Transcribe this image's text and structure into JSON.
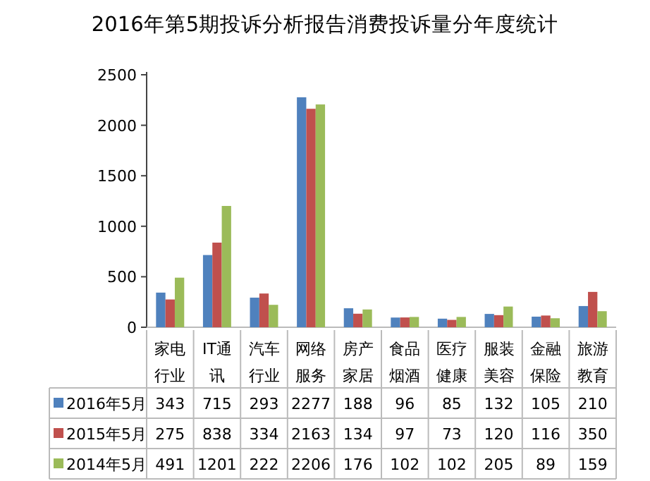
{
  "chart_data": {
    "type": "bar",
    "title": "2016年第5期投诉分析报告消费投诉量分年度统计",
    "categories": [
      "家电行业",
      "IT通讯",
      "汽车行业",
      "网络服务",
      "房产家居",
      "食品烟酒",
      "医疗健康",
      "服装美容",
      "金融保险",
      "旅游教育"
    ],
    "series": [
      {
        "name": "2016年5月",
        "color": "#4f81bd",
        "values": [
          343,
          715,
          293,
          2277,
          188,
          96,
          85,
          132,
          105,
          210
        ]
      },
      {
        "name": "2015年5月",
        "color": "#c0504d",
        "values": [
          275,
          838,
          334,
          2163,
          134,
          97,
          73,
          120,
          116,
          350
        ]
      },
      {
        "name": "2014年5月",
        "color": "#9bbb59",
        "values": [
          491,
          1201,
          222,
          2206,
          176,
          102,
          102,
          205,
          89,
          159
        ]
      }
    ],
    "ylim": [
      0,
      2500
    ],
    "yticks": [
      0,
      500,
      1000,
      1500,
      2000,
      2500
    ],
    "data_labels": true,
    "legend": "bottom",
    "grid": false
  }
}
